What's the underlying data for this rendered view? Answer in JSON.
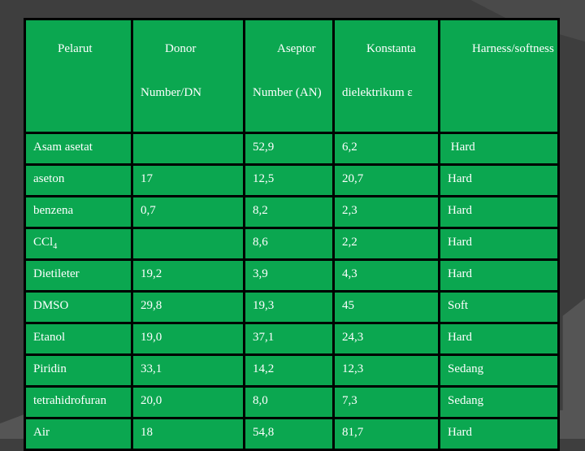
{
  "colors": {
    "slide-bg": "#3e3e3e",
    "bg-accent-top": "#4a4a4a",
    "bg-accent-bottom": "#555555",
    "table-green": "#0ba750",
    "table-border": "#000000",
    "text-color": "#ffffff"
  },
  "table": {
    "headers": [
      {
        "line1": "Pelarut",
        "line2": ""
      },
      {
        "line1": "Donor",
        "line2": "Number/DN"
      },
      {
        "line1": "Aseptor",
        "line2": "Number (AN)"
      },
      {
        "line1": "Konstanta",
        "line2": "dielektrikum ε"
      },
      {
        "line1": "Harness/softness",
        "line2": ""
      }
    ],
    "rows": [
      {
        "pelarut": "Asam asetat",
        "dn": "",
        "an": "52,9",
        "konstanta": "6,2",
        "hardness": " Hard"
      },
      {
        "pelarut": "aseton",
        "dn": "17",
        "an": "12,5",
        "konstanta": "20,7",
        "hardness": "Hard"
      },
      {
        "pelarut": "benzena",
        "dn": "0,7",
        "an": "8,2",
        "konstanta": "2,3",
        "hardness": "Hard"
      },
      {
        "pelarut": "CCl",
        "pelarut_sub": "4",
        "dn": "",
        "an": "8,6",
        "konstanta": "2,2",
        "hardness": "Hard"
      },
      {
        "pelarut": "Dietileter",
        "dn": "19,2",
        "an": "3,9",
        "konstanta": "4,3",
        "hardness": "Hard"
      },
      {
        "pelarut": "DMSO",
        "dn": "29,8",
        "an": "19,3",
        "konstanta": "45",
        "hardness": "Soft"
      },
      {
        "pelarut": "Etanol",
        "dn": "19,0",
        "an": "37,1",
        "konstanta": "24,3",
        "hardness": "Hard"
      },
      {
        "pelarut": "Piridin",
        "dn": "33,1",
        "an": "14,2",
        "konstanta": "12,3",
        "hardness": "Sedang"
      },
      {
        "pelarut": "tetrahidrofuran",
        "dn": "20,0",
        "an": "8,0",
        "konstanta": "7,3",
        "hardness": "Sedang"
      },
      {
        "pelarut": "Air",
        "dn": "18",
        "an": "54,8",
        "konstanta": "81,7",
        "hardness": "Hard"
      }
    ]
  }
}
